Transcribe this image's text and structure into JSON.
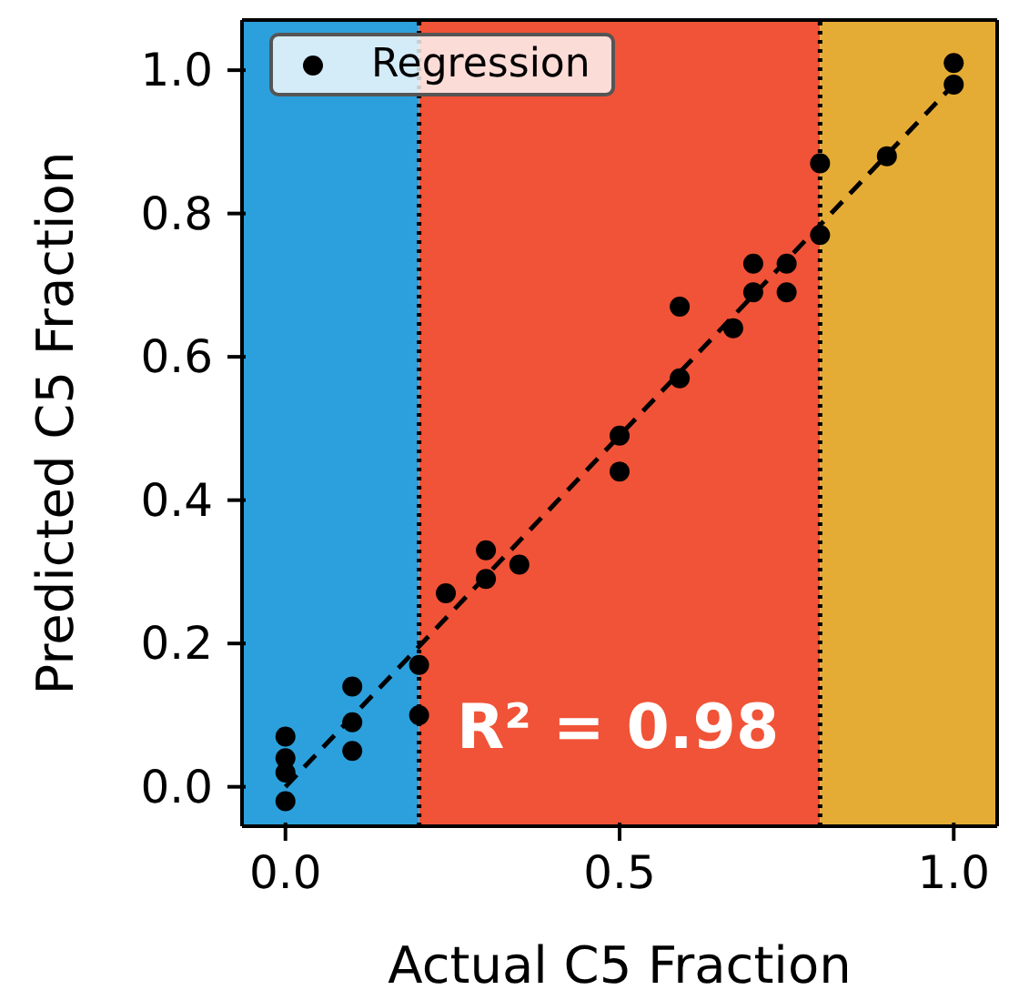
{
  "chart_data": {
    "type": "scatter",
    "xlabel": "Actual C5 Fraction",
    "ylabel": "Predicted C5 Fraction",
    "xlim": [
      -0.065,
      1.065
    ],
    "ylim": [
      -0.055,
      1.07
    ],
    "xticks": [
      {
        "value": 0,
        "label": "0.0"
      },
      {
        "value": 0.5,
        "label": "0.5"
      },
      {
        "value": 1,
        "label": "1.0"
      }
    ],
    "yticks": [
      {
        "value": 0,
        "label": "0.0"
      },
      {
        "value": 0.2,
        "label": "0.2"
      },
      {
        "value": 0.4,
        "label": "0.4"
      },
      {
        "value": 0.6,
        "label": "0.6"
      },
      {
        "value": 0.8,
        "label": "0.8"
      },
      {
        "value": 1,
        "label": "1.0"
      }
    ],
    "grid": false,
    "legend": "top left",
    "marker": "circle",
    "series": [
      {
        "name": "Regression",
        "color": "#000000",
        "x": [
          0,
          0,
          0,
          0,
          0.1,
          0.1,
          0.1,
          0.2,
          0.2,
          0.24,
          0.3,
          0.3,
          0.35,
          0.5,
          0.5,
          0.59,
          0.59,
          0.67,
          0.7,
          0.7,
          0.75,
          0.75,
          0.8,
          0.8,
          0.9,
          1,
          1
        ],
        "values": [
          0.07,
          0.04,
          0.02,
          -0.02,
          0.14,
          0.09,
          0.05,
          0.17,
          0.1,
          0.27,
          0.33,
          0.29,
          0.31,
          0.49,
          0.44,
          0.67,
          0.57,
          0.64,
          0.73,
          0.69,
          0.73,
          0.69,
          0.87,
          0.77,
          0.88,
          1.01,
          0.98
        ]
      },
      {
        "type": "line",
        "color": "#000000",
        "line_style": "dashed",
        "marker": "none",
        "x": [
          0,
          1
        ],
        "values": [
          0,
          0.98
        ]
      }
    ],
    "bands": [
      {
        "axis": "x",
        "from": -0.065,
        "to": 0.2,
        "color": "#2ca0dc"
      },
      {
        "axis": "x",
        "from": 0.2,
        "to": 0.8,
        "color": "#f05337"
      },
      {
        "axis": "x",
        "from": 0.8,
        "to": 1.065,
        "color": "#e5ac35"
      }
    ],
    "ref_lines": [
      {
        "axis": "x",
        "value": 0.2,
        "color": "#000000",
        "line_style": "dotted"
      },
      {
        "axis": "x",
        "value": 0.8,
        "color": "#000000",
        "line_style": "dotted"
      }
    ],
    "annotations": [
      "R² = 0.98"
    ]
  }
}
